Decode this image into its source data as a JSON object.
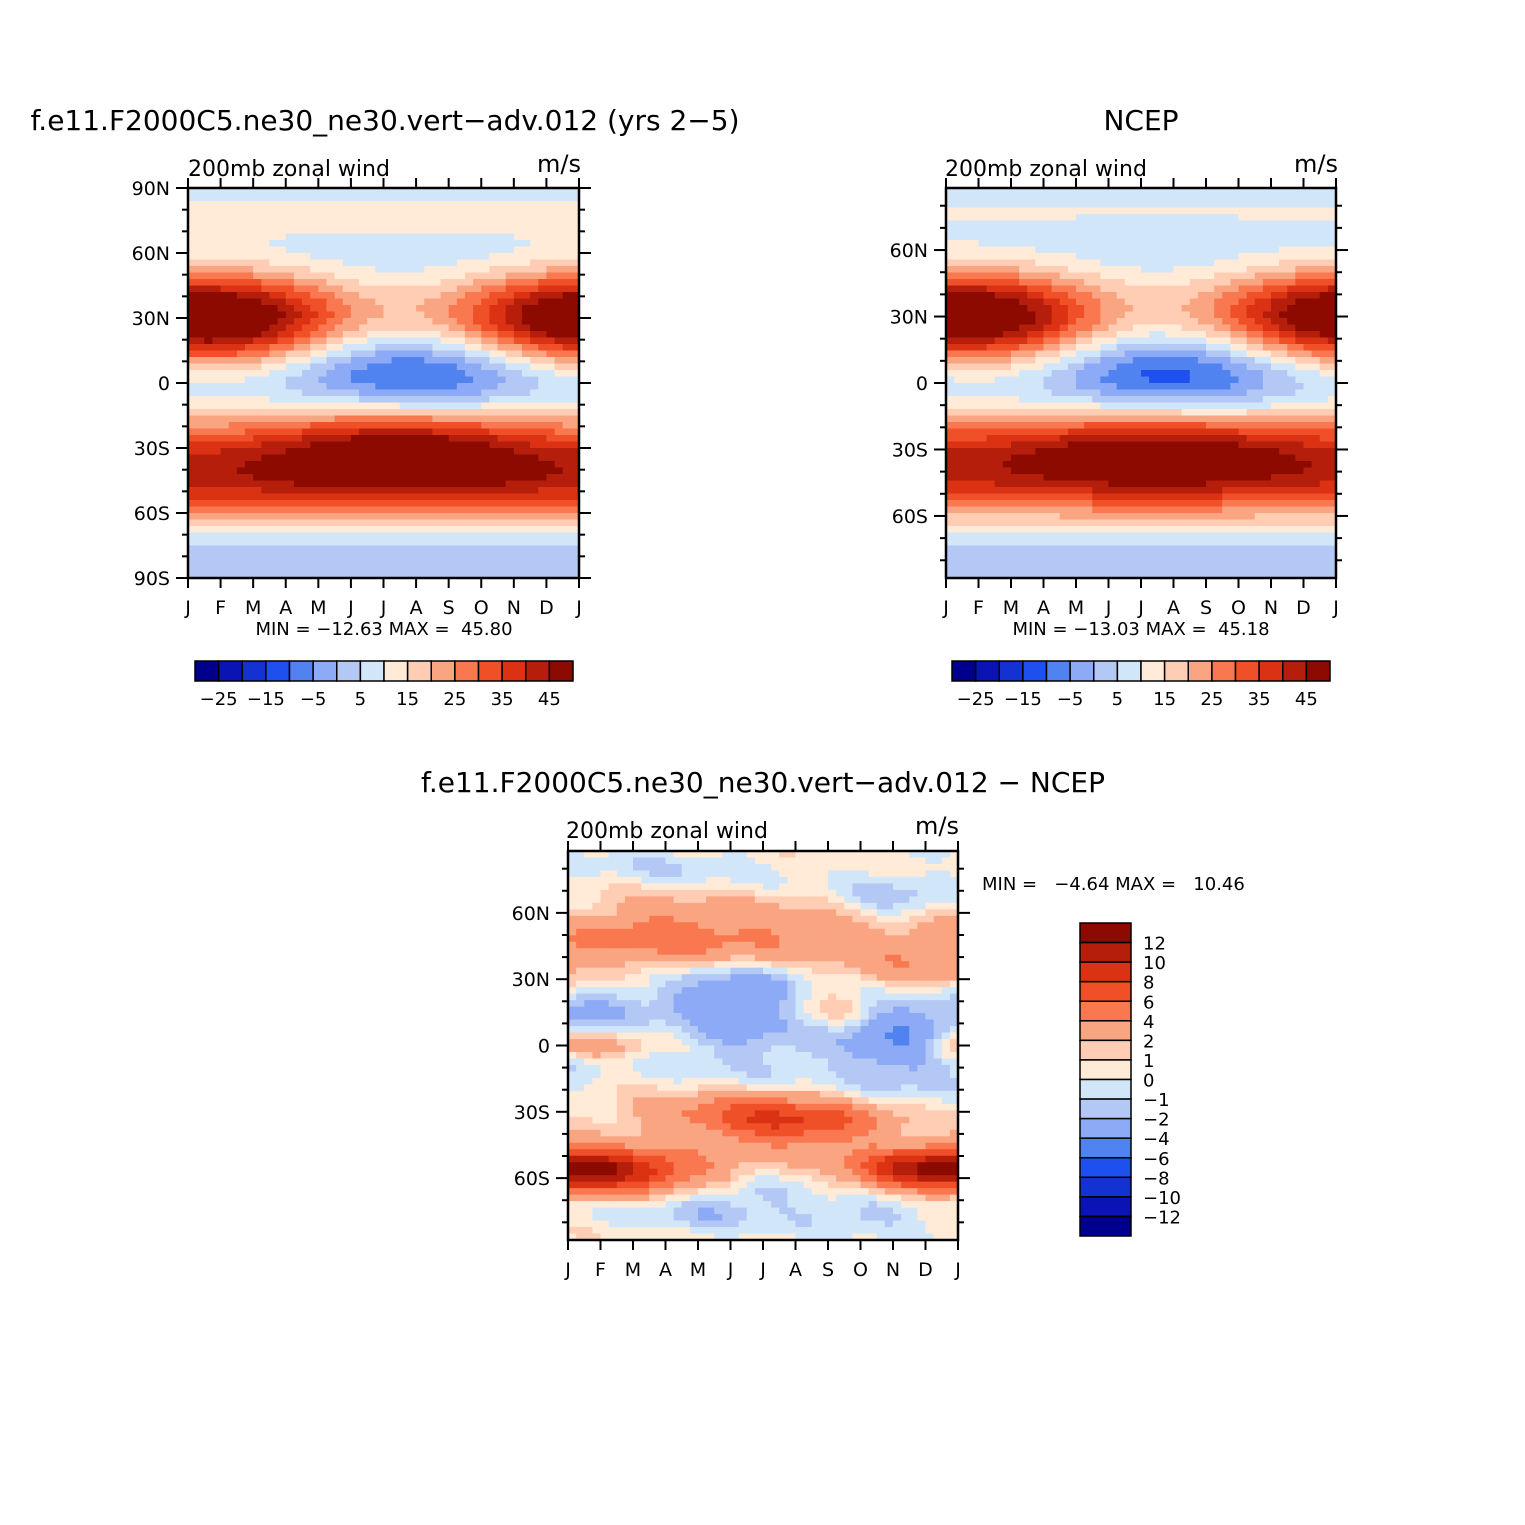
{
  "chart_data": [
    {
      "type": "heatmap",
      "title": "f.e11.F2000C5.ne30_ne30.vert−adv.012 (yrs 2−5)",
      "subtitle_left": "200mb zonal wind",
      "units": "m/s",
      "x_labels": [
        "J",
        "F",
        "M",
        "A",
        "M",
        "J",
        "J",
        "A",
        "S",
        "O",
        "N",
        "D",
        "J"
      ],
      "y_labels": [
        "90N",
        "60N",
        "30N",
        "0",
        "30S",
        "60S",
        "90S"
      ],
      "y_label_lats": [
        90,
        60,
        30,
        0,
        -30,
        -60,
        -90
      ],
      "ylim": [
        -90,
        90
      ],
      "stats_label": "MIN = −12.63 MAX =  45.80",
      "min": -12.63,
      "max": 45.8,
      "colorbar": {
        "orientation": "horizontal",
        "levels": [
          -30,
          -25,
          -20,
          -15,
          -10,
          -5,
          0,
          5,
          10,
          15,
          20,
          25,
          30,
          35,
          40,
          45
        ],
        "labels": [
          "−25",
          "−15",
          "−5",
          "5",
          "15",
          "25",
          "35",
          "45"
        ]
      },
      "field": {
        "jets": [
          {
            "lat": 30,
            "amp": 50,
            "width": 15,
            "season_phase": 0.5,
            "season_amp": 0.5,
            "season_shift": 0
          },
          {
            "lat": -29,
            "amp": 44,
            "width": 14,
            "season_phase": 6.5,
            "season_amp": 0.25,
            "season_shift": 0
          },
          {
            "lat": -48,
            "amp": 37,
            "width": 13,
            "season_phase": 0.5,
            "season_amp": 0,
            "season_shift": 0
          }
        ],
        "tropical": {
          "lat": 4,
          "amp": -19,
          "width": 14,
          "season_phase": 7,
          "season_amp": 0.6
        },
        "background": -2,
        "polar_north": 9,
        "polar_south": -2
      }
    },
    {
      "type": "heatmap",
      "title": "NCEP",
      "subtitle_left": "200mb zonal wind",
      "units": "m/s",
      "x_labels": [
        "J",
        "F",
        "M",
        "A",
        "M",
        "J",
        "J",
        "A",
        "S",
        "O",
        "N",
        "D",
        "J"
      ],
      "y_labels": [
        "60N",
        "30N",
        "0",
        "30S",
        "60S"
      ],
      "y_label_lats": [
        60,
        30,
        0,
        -30,
        -60
      ],
      "ylim": [
        -88,
        88
      ],
      "stats_label": "MIN = −13.03 MAX =  45.18",
      "min": -13.03,
      "max": 45.18,
      "colorbar": {
        "orientation": "horizontal",
        "levels": [
          -30,
          -25,
          -20,
          -15,
          -10,
          -5,
          0,
          5,
          10,
          15,
          20,
          25,
          30,
          35,
          40,
          45
        ],
        "labels": [
          "−25",
          "−15",
          "−5",
          "5",
          "15",
          "25",
          "35",
          "45"
        ]
      },
      "field": {
        "jets": [
          {
            "lat": 30,
            "amp": 48,
            "width": 15,
            "season_phase": 0.5,
            "season_amp": 0.5,
            "season_shift": 0
          },
          {
            "lat": -29,
            "amp": 42,
            "width": 14,
            "season_phase": 6.5,
            "season_amp": 0.2,
            "season_shift": 0
          },
          {
            "lat": -46,
            "amp": 32,
            "width": 14,
            "season_phase": 0.5,
            "season_amp": 0,
            "season_shift": 0
          }
        ],
        "tropical": {
          "lat": 4,
          "amp": -20,
          "width": 14,
          "season_phase": 7,
          "season_amp": 0.6
        },
        "background": -2,
        "polar_north": 7,
        "polar_south": -3
      }
    },
    {
      "type": "heatmap",
      "title": "f.e11.F2000C5.ne30_ne30.vert−adv.012 − NCEP",
      "subtitle_left": "200mb zonal wind",
      "units": "m/s",
      "x_labels": [
        "J",
        "F",
        "M",
        "A",
        "M",
        "J",
        "J",
        "A",
        "S",
        "O",
        "N",
        "D",
        "J"
      ],
      "y_labels": [
        "60N",
        "30N",
        "0",
        "30S",
        "60S"
      ],
      "y_label_lats": [
        60,
        30,
        0,
        -30,
        -60
      ],
      "ylim": [
        -88,
        88
      ],
      "stats_label": "MIN =   −4.64 MAX =   10.46",
      "min": -4.64,
      "max": 10.46,
      "colorbar": {
        "orientation": "vertical",
        "levels": [
          -12,
          -10,
          -8,
          -6,
          -4,
          -2,
          -1,
          0,
          1,
          2,
          4,
          6,
          8,
          10,
          12
        ],
        "labels": [
          "12",
          "10",
          "8",
          "6",
          "4",
          "2",
          "1",
          "0",
          "−1",
          "−2",
          "−4",
          "−6",
          "−8",
          "−10",
          "−12"
        ]
      },
      "difference_features": [
        {
          "lat": -56,
          "month": 11.5,
          "amp": 8.5,
          "wlat": 7,
          "wmon": 2.0
        },
        {
          "lat": -56,
          "month": 1.5,
          "amp": 6.5,
          "wlat": 7,
          "wmon": 2.5
        },
        {
          "lat": -36,
          "month": 7.0,
          "amp": 6.5,
          "wlat": 7,
          "wmon": 2.0
        },
        {
          "lat": -30,
          "month": 5.0,
          "amp": 3.5,
          "wlat": 6,
          "wmon": 2.5
        },
        {
          "lat": 50,
          "month": 2.5,
          "amp": 3.5,
          "wlat": 12,
          "wmon": 2.0
        },
        {
          "lat": 50,
          "month": 6.5,
          "amp": 3.0,
          "wlat": 10,
          "wmon": 2.5
        },
        {
          "lat": 35,
          "month": 11.0,
          "amp": 3.5,
          "wlat": 12,
          "wmon": 1.8
        },
        {
          "lat": 15,
          "month": 8.2,
          "amp": 2.5,
          "wlat": 8,
          "wmon": 1.0
        },
        {
          "lat": 0,
          "month": 1.0,
          "amp": 2.5,
          "wlat": 5,
          "wmon": 1.2
        },
        {
          "lat": 0,
          "month": 12.0,
          "amp": 3.0,
          "wlat": 5,
          "wmon": 1.0
        },
        {
          "lat": 25,
          "month": 5.0,
          "amp": -3.5,
          "wlat": 9,
          "wmon": 1.8
        },
        {
          "lat": 5,
          "month": 5.5,
          "amp": -2.5,
          "wlat": 12,
          "wmon": 1.8
        },
        {
          "lat": 5,
          "month": 10.3,
          "amp": -4.8,
          "wlat": 16,
          "wmon": 1.5
        },
        {
          "lat": 65,
          "month": 10.0,
          "amp": -2.2,
          "wlat": 8,
          "wmon": 1.2
        },
        {
          "lat": 20,
          "month": 1.0,
          "amp": -2.0,
          "wlat": 15,
          "wmon": 1.0
        },
        {
          "lat": -75,
          "month": 9.3,
          "amp": -2.0,
          "wlat": 6,
          "wmon": 1.5
        },
        {
          "lat": -75,
          "month": 4.5,
          "amp": -2.0,
          "wlat": 6,
          "wmon": 1.5
        },
        {
          "lat": -65,
          "month": 6.0,
          "amp": -1.5,
          "wlat": 5,
          "wmon": 1.5
        },
        {
          "lat": 80,
          "month": 3.0,
          "amp": -1.2,
          "wlat": 8,
          "wmon": 2.0
        }
      ]
    }
  ],
  "colors": {
    "main_scale": [
      "#00008c",
      "#0a14b4",
      "#1432d2",
      "#1e50f0",
      "#5082f0",
      "#8caaf5",
      "#b4c8f5",
      "#d2e6fa",
      "#ffebd7",
      "#ffcdb4",
      "#faa582",
      "#fa7850",
      "#f05028",
      "#dc3214",
      "#b41e0a",
      "#8c0a00"
    ],
    "diff_scale": [
      "#00008c",
      "#0a14b4",
      "#1432d2",
      "#1e50f0",
      "#5082f0",
      "#8caaf5",
      "#b4c8f5",
      "#d2e6fa",
      "#ffebd7",
      "#ffcdb4",
      "#faa582",
      "#fa7850",
      "#f05028",
      "#dc3214",
      "#b41e0a",
      "#8c0a00"
    ]
  }
}
